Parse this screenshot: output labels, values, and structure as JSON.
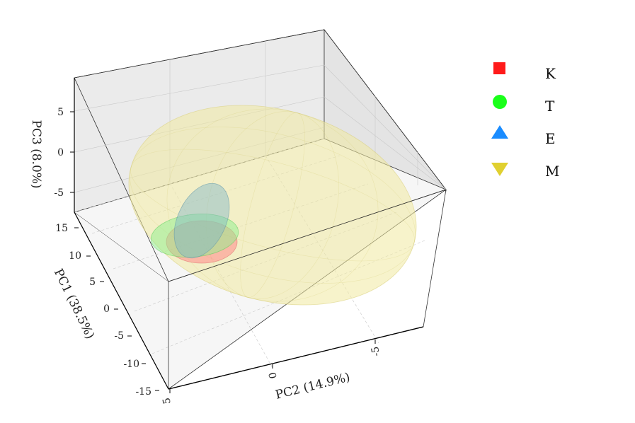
{
  "chart_data": {
    "type": "scatter",
    "subtype": "3d-pca-confidence-ellipsoids",
    "title": "",
    "axes": {
      "x": {
        "label": "PC2 (14.9%)",
        "ticks": [
          "5",
          "0",
          "-5"
        ]
      },
      "y": {
        "label": "PC1 (38.5%)",
        "ticks": [
          "-15",
          "-10",
          "-5",
          "0",
          "5",
          "10",
          "15"
        ]
      },
      "z": {
        "label": "PC3 (8.0%)",
        "ticks": [
          "-5",
          "0",
          "5"
        ]
      }
    },
    "grid": true,
    "legend_position": "right",
    "series": [
      {
        "name": "K",
        "marker": "square",
        "color": "#ff1a1a"
      },
      {
        "name": "T",
        "marker": "circle",
        "color": "#1aff1a"
      },
      {
        "name": "E",
        "marker": "triangle-up",
        "color": "#1a8cff"
      },
      {
        "name": "M",
        "marker": "triangle-down",
        "color": "#e0d030"
      }
    ]
  }
}
